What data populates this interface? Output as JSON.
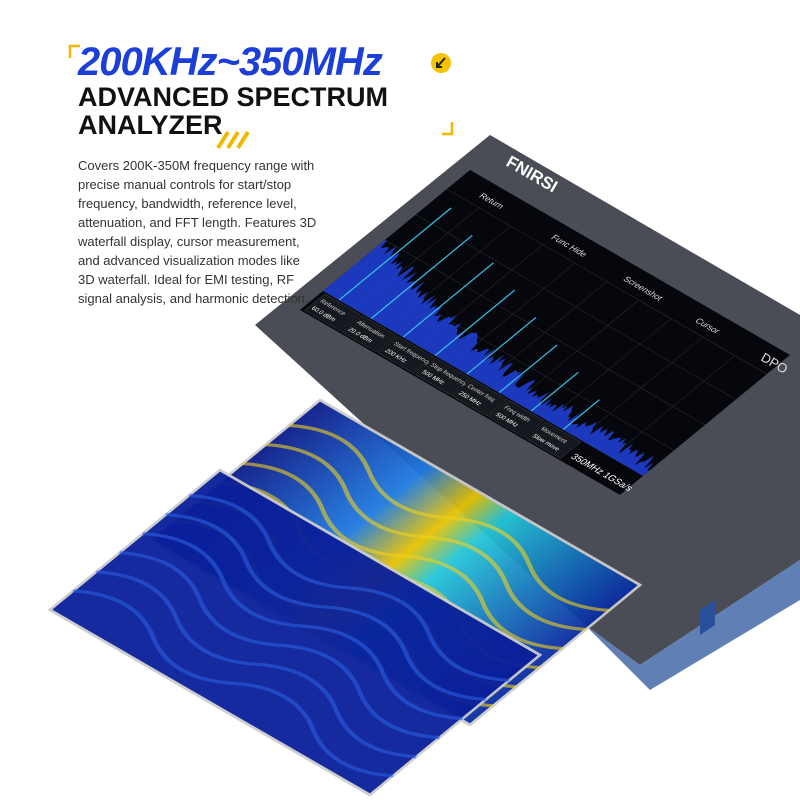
{
  "header": {
    "title": "200KHz~350MHz",
    "subtitle_line1": "ADVANCED SPECTRUM",
    "subtitle_line2": "ANALYZER"
  },
  "description": "Covers 200K-350M frequency range with precise manual controls for start/stop frequency, bandwidth, reference level, attenuation, and FFT length. Features 3D waterfall display, cursor measurement, and advanced visualization modes like 3D waterfall. Ideal for EMI testing, RF signal analysis, and harmonic detection.",
  "device": {
    "brand": "FNIRSI",
    "model_badge": "DPO",
    "screen": {
      "spec": "350MHz 1GSa/s",
      "buttons": [
        "Return",
        "Func Hide",
        "Screenshot",
        "Cursor"
      ],
      "menu": [
        {
          "label": "Reference",
          "value": "60.0 dBm"
        },
        {
          "label": "Attenuation",
          "value": "20.0 dBm"
        },
        {
          "label": "Start frequency",
          "value": "200 KHz"
        },
        {
          "label": "Stop frequency",
          "value": "500 MHz"
        },
        {
          "label": "Center freq",
          "value": "250 MHz"
        },
        {
          "label": "Freq width",
          "value": "500 MHz"
        },
        {
          "label": "Movement",
          "value": "Slow move"
        }
      ]
    }
  }
}
